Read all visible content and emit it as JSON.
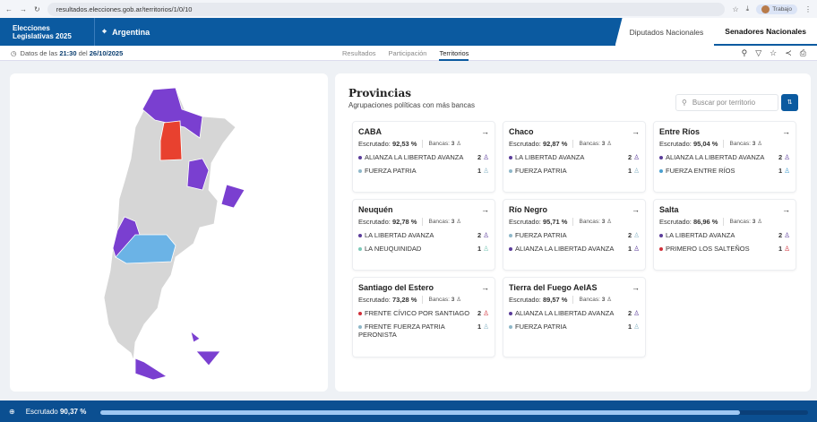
{
  "browser": {
    "url": "resultados.elecciones.gob.ar/territorios/1/0/10",
    "profile": "Trabajo"
  },
  "header": {
    "logo_line1": "Elecciones",
    "logo_line2": "Legislativas 2025",
    "location": "Argentina",
    "chambers": [
      "Diputados Nacionales",
      "Senadores Nacionales"
    ]
  },
  "subnav": {
    "prefix": "Datos de las",
    "time": "21:30",
    "mid": "del",
    "date": "26/10/2025",
    "tabs": [
      "Resultados",
      "Participación",
      "Territorios"
    ]
  },
  "panel": {
    "title": "Provincias",
    "subtitle": "Agrupaciones políticas con más bancas",
    "search_placeholder": "Buscar por territorio",
    "filter_label": "⇅"
  },
  "labels": {
    "escrutado": "Escrutado:",
    "bancas": "Bancas:"
  },
  "cards": [
    {
      "name": "CABA",
      "escrutado": "92,53 %",
      "bancas": "3",
      "parties": [
        {
          "name": "ALIANZA LA LIBERTAD AVANZA",
          "seats": "2",
          "color": "#5b3d9a"
        },
        {
          "name": "FUERZA PATRIA",
          "seats": "1",
          "color": "#8fb8c9"
        }
      ]
    },
    {
      "name": "Chaco",
      "escrutado": "92,87 %",
      "bancas": "3",
      "parties": [
        {
          "name": "LA LIBERTAD AVANZA",
          "seats": "2",
          "color": "#5b3d9a"
        },
        {
          "name": "FUERZA PATRIA",
          "seats": "1",
          "color": "#8fb8c9"
        }
      ]
    },
    {
      "name": "Entre Ríos",
      "escrutado": "95,04 %",
      "bancas": "3",
      "parties": [
        {
          "name": "ALIANZA LA LIBERTAD AVANZA",
          "seats": "2",
          "color": "#5b3d9a"
        },
        {
          "name": "FUERZA ENTRE RÍOS",
          "seats": "1",
          "color": "#4aa0d0"
        }
      ]
    },
    {
      "name": "Neuquén",
      "escrutado": "92,78 %",
      "bancas": "3",
      "parties": [
        {
          "name": "LA LIBERTAD AVANZA",
          "seats": "2",
          "color": "#5b3d9a"
        },
        {
          "name": "LA NEUQUINIDAD",
          "seats": "1",
          "color": "#7cc8b8"
        }
      ]
    },
    {
      "name": "Río Negro",
      "escrutado": "95,71 %",
      "bancas": "3",
      "parties": [
        {
          "name": "FUERZA PATRIA",
          "seats": "2",
          "color": "#8fb8c9"
        },
        {
          "name": "ALIANZA LA LIBERTAD AVANZA",
          "seats": "1",
          "color": "#5b3d9a"
        }
      ]
    },
    {
      "name": "Salta",
      "escrutado": "86,96 %",
      "bancas": "3",
      "parties": [
        {
          "name": "LA LIBERTAD AVANZA",
          "seats": "2",
          "color": "#5b3d9a"
        },
        {
          "name": "PRIMERO LOS SALTEÑOS",
          "seats": "1",
          "color": "#d0303a"
        }
      ]
    },
    {
      "name": "Santiago del Estero",
      "escrutado": "73,28 %",
      "bancas": "3",
      "parties": [
        {
          "name": "FRENTE CÍVICO POR SANTIAGO",
          "seats": "2",
          "color": "#d0303a"
        },
        {
          "name": "FRENTE FUERZA PATRIA PERONISTA",
          "seats": "1",
          "color": "#8fb8c9"
        }
      ]
    },
    {
      "name": "Tierra del Fuego AeIAS",
      "escrutado": "89,57 %",
      "bancas": "3",
      "parties": [
        {
          "name": "ALIANZA LA LIBERTAD AVANZA",
          "seats": "2",
          "color": "#5b3d9a"
        },
        {
          "name": "FUERZA PATRIA",
          "seats": "1",
          "color": "#8fb8c9"
        }
      ]
    }
  ],
  "footer": {
    "label": "Escrutado",
    "value": "90,37 %",
    "progress": 90.37
  },
  "colors": {
    "brand": "#0b5aa0",
    "purple": "#7a3fd0",
    "red": "#e8412f",
    "lightblue": "#6bb3e6",
    "gray": "#d6d6d6"
  }
}
